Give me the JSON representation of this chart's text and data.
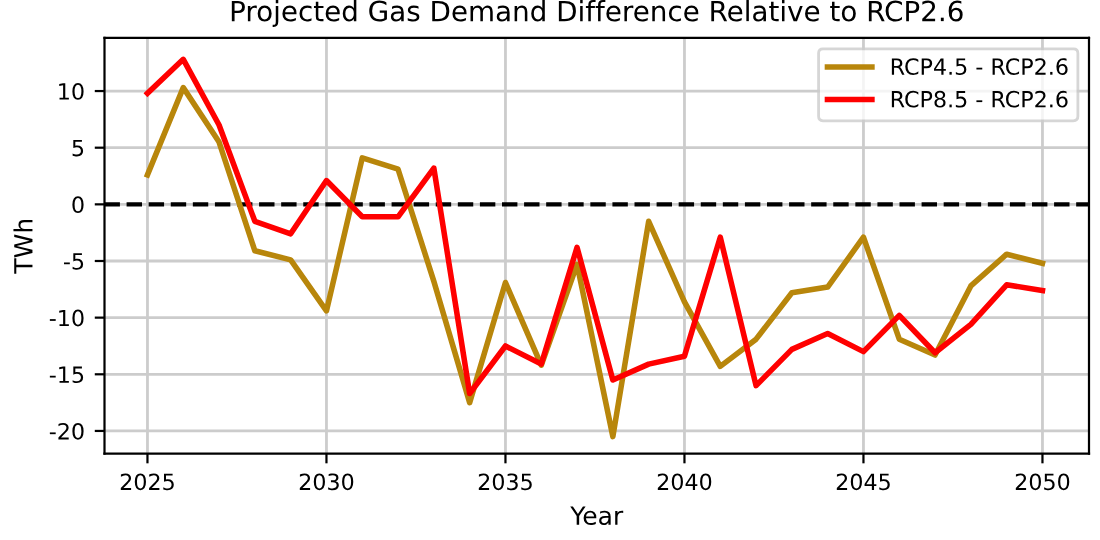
{
  "chart_data": {
    "type": "line",
    "title": "Projected Gas Demand Difference Relative to RCP2.6",
    "xlabel": "Year",
    "ylabel": "TWh",
    "x": [
      2025,
      2026,
      2027,
      2028,
      2029,
      2030,
      2031,
      2032,
      2033,
      2034,
      2035,
      2036,
      2037,
      2038,
      2039,
      2040,
      2041,
      2042,
      2043,
      2044,
      2045,
      2046,
      2047,
      2048,
      2049,
      2050
    ],
    "series": [
      {
        "name": "RCP4.5 - RCP2.6",
        "color": "#b8860b",
        "values": [
          2.6,
          10.3,
          5.5,
          -4.1,
          -4.9,
          -9.4,
          4.1,
          3.1,
          -6.8,
          -17.5,
          -6.9,
          -14.2,
          -5.3,
          -20.5,
          -1.5,
          -8.6,
          -14.3,
          -11.9,
          -7.8,
          -7.3,
          -2.9,
          -11.9,
          -13.3,
          -7.2,
          -4.4,
          -5.2
        ]
      },
      {
        "name": "RCP8.5 - RCP2.6",
        "color": "#ff0000",
        "values": [
          9.8,
          12.8,
          7.0,
          -1.5,
          -2.6,
          2.1,
          -1.1,
          -1.1,
          3.2,
          -16.7,
          -12.5,
          -14.1,
          -3.8,
          -15.5,
          -14.1,
          -13.4,
          -2.9,
          -16.0,
          -12.8,
          -11.4,
          -13.0,
          -9.8,
          -13.1,
          -10.6,
          -7.1,
          -7.6
        ]
      }
    ],
    "xlim": [
      2023.8,
      2051.3
    ],
    "ylim": [
      -22,
      14.7
    ],
    "xticks": [
      2025,
      2030,
      2035,
      2040,
      2045,
      2050
    ],
    "yticks": [
      -20,
      -15,
      -10,
      -5,
      0,
      5,
      10
    ],
    "ref_lines": [
      {
        "axis": "y",
        "value": 0,
        "color": "#000000",
        "line_style": "dashed"
      }
    ],
    "grid": true,
    "legend": "top right",
    "marker": "none",
    "line_style": "solid"
  }
}
